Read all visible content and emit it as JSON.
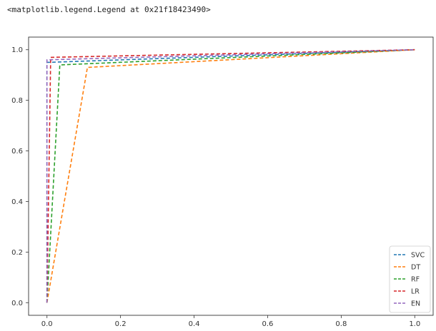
{
  "output": {
    "repr_text": "<matplotlib.legend.Legend at 0x21f18423490>"
  },
  "chart_data": {
    "type": "line",
    "title": "",
    "xlabel": "",
    "ylabel": "",
    "xlim": [
      -0.05,
      1.05
    ],
    "ylim": [
      -0.05,
      1.05
    ],
    "xticks": [
      0.0,
      0.2,
      0.4,
      0.6,
      0.8,
      1.0
    ],
    "xtick_labels": [
      "0.0",
      "0.2",
      "0.4",
      "0.6",
      "0.8",
      "1.0"
    ],
    "yticks": [
      0.0,
      0.2,
      0.4,
      0.6,
      0.8,
      1.0
    ],
    "ytick_labels": [
      "0.0",
      "0.2",
      "0.4",
      "0.6",
      "0.8",
      "1.0"
    ],
    "grid": false,
    "line_style": "dashed",
    "legend_position": "lower-right",
    "series": [
      {
        "name": "SVC",
        "color": "#1f77b4",
        "x": [
          0.0,
          0.0,
          1.0
        ],
        "y": [
          0.0,
          0.95,
          1.0
        ]
      },
      {
        "name": "DT",
        "color": "#ff7f0e",
        "x": [
          0.0,
          0.11,
          1.0
        ],
        "y": [
          0.0,
          0.93,
          1.0
        ]
      },
      {
        "name": "RF",
        "color": "#2ca02c",
        "x": [
          0.0,
          0.035,
          1.0
        ],
        "y": [
          0.0,
          0.94,
          1.0
        ]
      },
      {
        "name": "LR",
        "color": "#d62728",
        "x": [
          0.0,
          0.01,
          1.0
        ],
        "y": [
          0.0,
          0.97,
          1.0
        ]
      },
      {
        "name": "EN",
        "color": "#9467bd",
        "x": [
          0.0,
          0.0,
          1.0
        ],
        "y": [
          0.0,
          0.96,
          1.0
        ]
      }
    ]
  }
}
